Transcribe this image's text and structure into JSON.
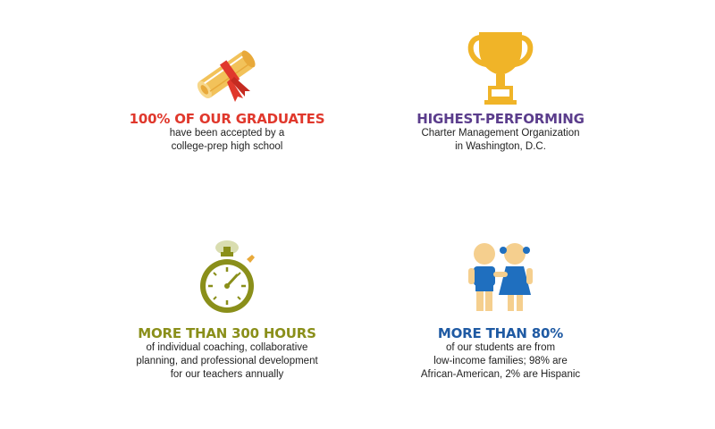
{
  "colors": {
    "graduates": "#e0382c",
    "performing": "#5b3d8c",
    "hours": "#8a8f1a",
    "students": "#1f5aa3",
    "scroll": "#f2c25a",
    "ribbon": "#e0382c",
    "trophy": "#f0b428",
    "stopwatch": "#8a8f1a",
    "kid_skin": "#f5cf8e",
    "kid_blue": "#1f6fbf"
  },
  "stats": [
    {
      "icon": "diploma-icon",
      "headline": "100% of our graduates",
      "description": "have been accepted by a\ncollege-prep high school"
    },
    {
      "icon": "trophy-icon",
      "headline": "Highest-performing",
      "description": "Charter Management Organization\nin Washington, D.C."
    },
    {
      "icon": "stopwatch-icon",
      "headline": "More than 300 hours",
      "description": "of individual coaching, collaborative\nplanning, and professional development\nfor our teachers annually"
    },
    {
      "icon": "students-icon",
      "headline": "More than 80%",
      "description": "of our students are from\nlow-income families; 98% are\nAfrican-American, 2% are Hispanic"
    }
  ]
}
